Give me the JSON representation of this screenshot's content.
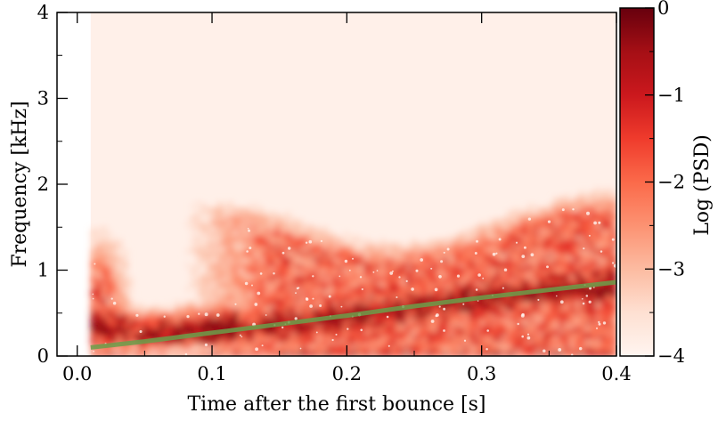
{
  "chart_data": {
    "type": "heatmap",
    "title": "",
    "xlabel": "Time after the first bounce [s]",
    "ylabel": "Frequency [kHz]",
    "xlim": [
      -0.015,
      0.4
    ],
    "ylim": [
      0,
      4
    ],
    "x_ticks": [
      0.0,
      0.1,
      0.2,
      0.3,
      0.4
    ],
    "x_tick_labels": [
      "0.0",
      "0.1",
      "0.2",
      "0.3",
      "0.4"
    ],
    "y_ticks": [
      0,
      1,
      2,
      3,
      4
    ],
    "y_tick_labels": [
      "0",
      "1",
      "2",
      "3",
      "4"
    ],
    "data_x_range": [
      0.01,
      0.4
    ],
    "data_y_range": [
      0,
      4
    ],
    "colorbar": {
      "label": "Log (PSD)",
      "range": [
        -4,
        0
      ],
      "ticks": [
        0,
        -1,
        -2,
        -3,
        -4
      ],
      "tick_labels": [
        "0",
        "−1",
        "−2",
        "−3",
        "−4"
      ],
      "colormap": "Reds",
      "color_stops": [
        "#fff5f0",
        "#fee0d2",
        "#fcbba1",
        "#fc9272",
        "#fb6a4a",
        "#ef3b2c",
        "#cb181d",
        "#a50f15",
        "#67000d"
      ]
    },
    "overlay_line": {
      "color": "#6b9e4a",
      "x": [
        0.01,
        0.05,
        0.1,
        0.15,
        0.2,
        0.25,
        0.3,
        0.35,
        0.4
      ],
      "y": [
        0.1,
        0.17,
        0.27,
        0.37,
        0.47,
        0.58,
        0.68,
        0.77,
        0.86
      ]
    }
  }
}
